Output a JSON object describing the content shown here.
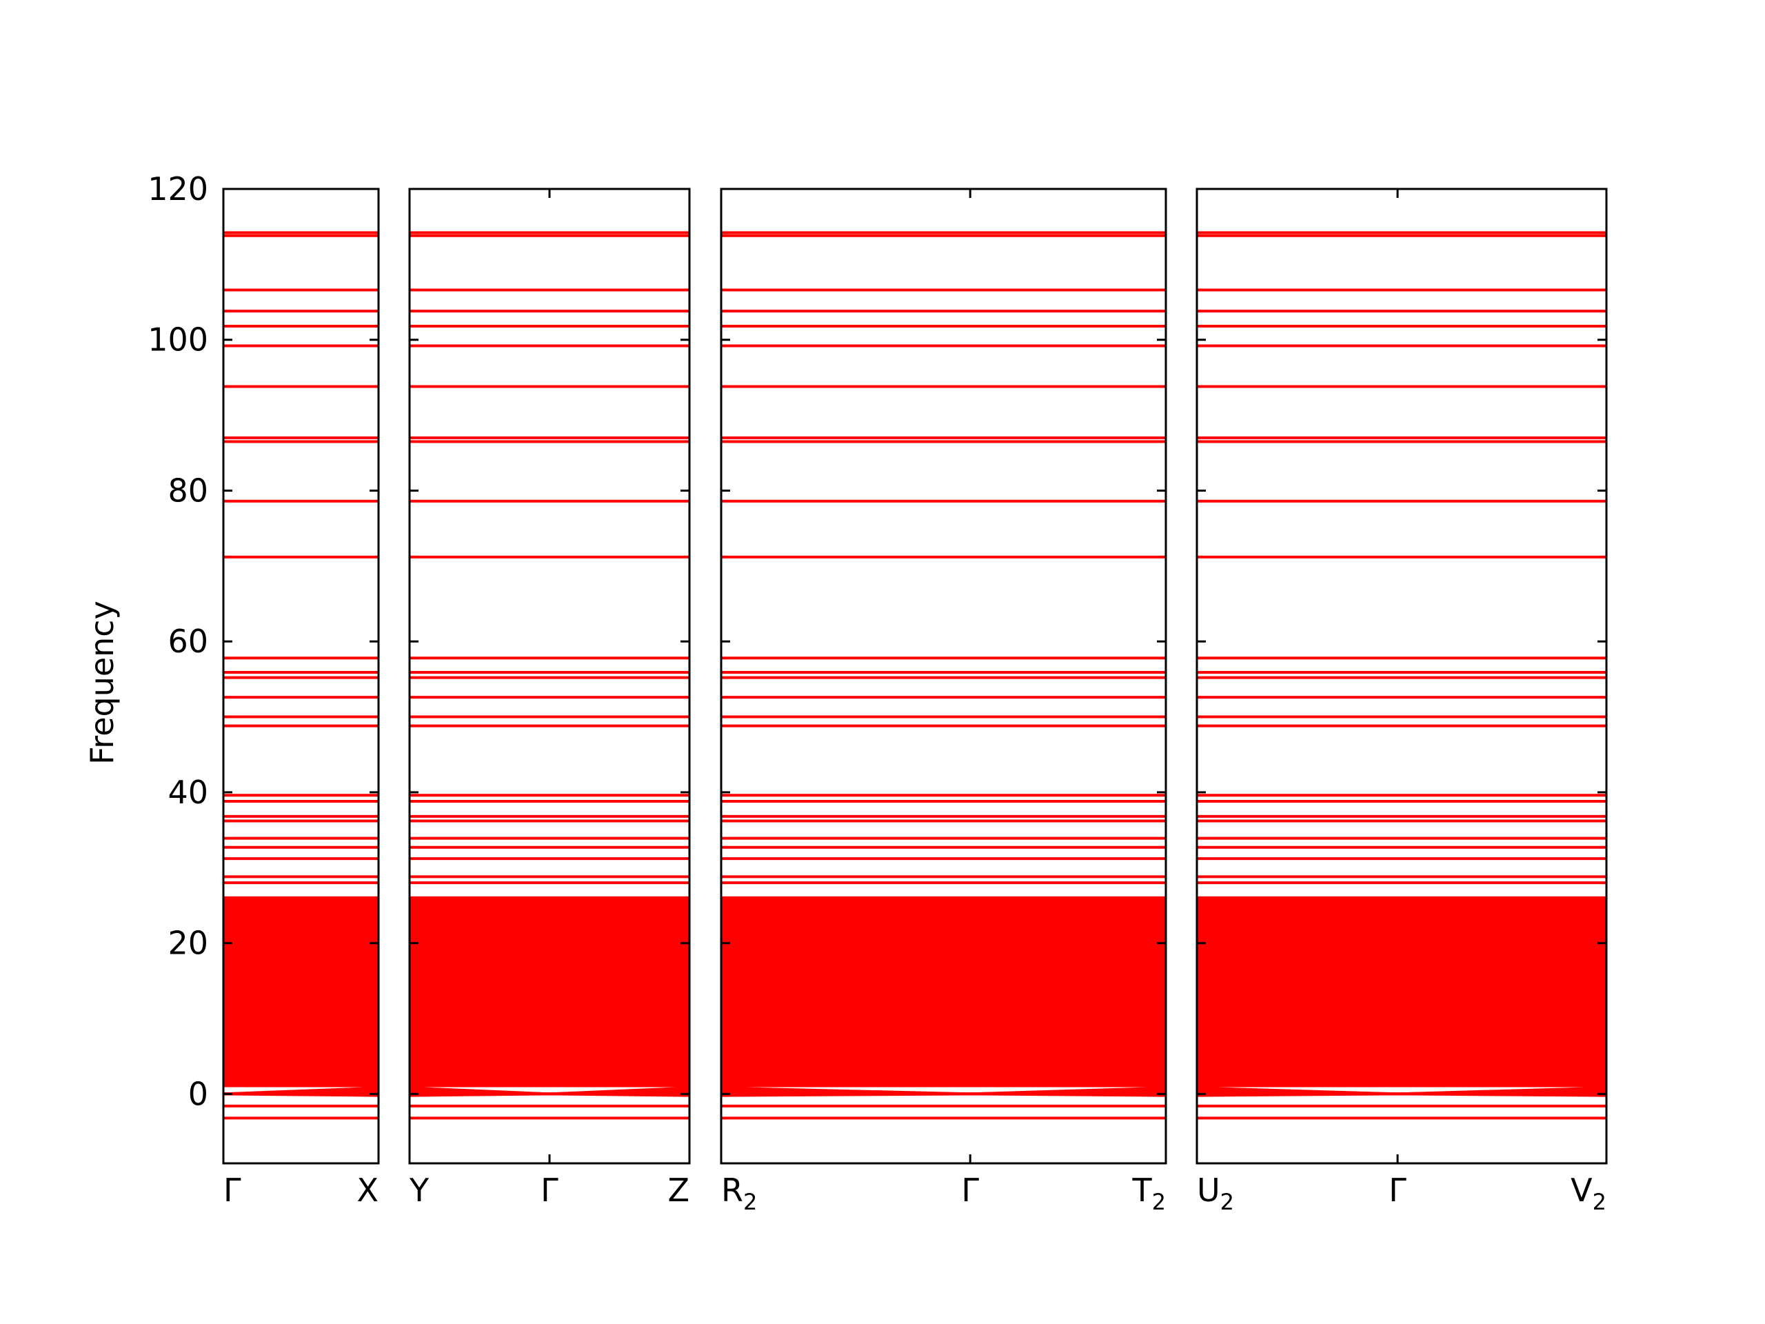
{
  "chart_data": {
    "type": "line",
    "title": "",
    "xlabel": "",
    "ylabel": "Frequency",
    "ylim": [
      -9.2,
      120
    ],
    "yticks": [
      0,
      20,
      40,
      60,
      80,
      100,
      120
    ],
    "grid": false,
    "legend": "none",
    "line_color": "#ff0000",
    "panels": [
      {
        "id": "panel-gamma-x",
        "ticks": [
          {
            "pos": 0.0,
            "label": "Γ"
          },
          {
            "pos": 1.0,
            "label": "X"
          }
        ],
        "dip_at": 0.0
      },
      {
        "id": "panel-y-gamma-z",
        "ticks": [
          {
            "pos": 0.0,
            "label": "Y"
          },
          {
            "pos": 0.5,
            "label": "Γ"
          },
          {
            "pos": 1.0,
            "label": "Z"
          }
        ],
        "dip_at": 0.5
      },
      {
        "id": "panel-r2-gamma-t2",
        "ticks": [
          {
            "pos": 0.0,
            "label": "R",
            "sub": "2"
          },
          {
            "pos": 0.56,
            "label": "Γ"
          },
          {
            "pos": 1.0,
            "label": "T",
            "sub": "2"
          }
        ],
        "dip_at": 0.56
      },
      {
        "id": "panel-u2-gamma-v2",
        "ticks": [
          {
            "pos": 0.0,
            "label": "U",
            "sub": "2"
          },
          {
            "pos": 0.49,
            "label": "Γ"
          },
          {
            "pos": 1.0,
            "label": "V",
            "sub": "2"
          }
        ],
        "dip_at": 0.49
      }
    ],
    "flat_bands": [
      114.2,
      113.8,
      106.6,
      103.8,
      101.8,
      99.2,
      93.8,
      87.0,
      86.5,
      78.6,
      71.2,
      57.8,
      55.9,
      55.2,
      52.6,
      50.0,
      48.8,
      39.6,
      38.8,
      36.8,
      36.2,
      33.9,
      32.7,
      31.2,
      28.8,
      28.0,
      -1.6,
      -3.2
    ],
    "dense_region": {
      "from": 0.9,
      "to": 26.2
    },
    "low_bands": {
      "max": 0.8,
      "gamma_value": 0.0,
      "baseline": -0.2
    }
  }
}
